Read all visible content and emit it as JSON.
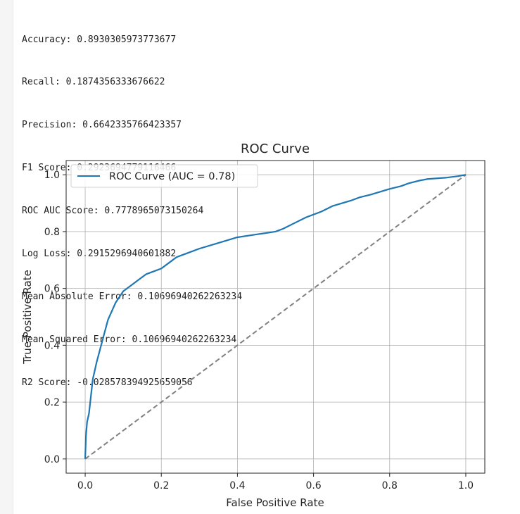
{
  "metrics": [
    "Accuracy: 0.8930305973773677",
    "Recall: 0.1874356333676622",
    "Precision: 0.6642335766423357",
    "F1 Score: 0.2923694779116466",
    "ROC AUC Score: 0.7778965073150264",
    "Log Loss: 0.2915296940601882",
    "Mean Absolute Error: 0.10696940262263234",
    "Mean Squared Error: 0.10696940262263234",
    "R2 Score: -0.028578394925659056"
  ],
  "chart_data": {
    "type": "line",
    "title": "ROC Curve",
    "xlabel": "False Positive Rate",
    "ylabel": "True Positive Rate",
    "xlim": [
      -0.05,
      1.05
    ],
    "ylim": [
      -0.05,
      1.05
    ],
    "xticks": [
      "0.0",
      "0.2",
      "0.4",
      "0.6",
      "0.8",
      "1.0"
    ],
    "yticks": [
      "0.0",
      "0.2",
      "0.4",
      "0.6",
      "0.8",
      "1.0"
    ],
    "grid": true,
    "legend_position": "top-left",
    "series": [
      {
        "name": "ROC Curve (AUC = 0.78)",
        "color": "#1f77b4",
        "style": "solid",
        "x": [
          0.0,
          0.002,
          0.005,
          0.01,
          0.015,
          0.02,
          0.03,
          0.04,
          0.05,
          0.06,
          0.07,
          0.08,
          0.09,
          0.1,
          0.11,
          0.12,
          0.14,
          0.16,
          0.17,
          0.18,
          0.2,
          0.22,
          0.24,
          0.26,
          0.28,
          0.3,
          0.35,
          0.4,
          0.45,
          0.5,
          0.52,
          0.55,
          0.58,
          0.6,
          0.62,
          0.65,
          0.7,
          0.72,
          0.75,
          0.8,
          0.83,
          0.85,
          0.88,
          0.9,
          0.95,
          0.98,
          1.0
        ],
        "y": [
          0.0,
          0.08,
          0.13,
          0.16,
          0.22,
          0.28,
          0.34,
          0.39,
          0.44,
          0.49,
          0.52,
          0.55,
          0.57,
          0.59,
          0.6,
          0.61,
          0.63,
          0.65,
          0.655,
          0.66,
          0.67,
          0.69,
          0.71,
          0.72,
          0.73,
          0.74,
          0.76,
          0.78,
          0.79,
          0.8,
          0.81,
          0.83,
          0.85,
          0.86,
          0.87,
          0.89,
          0.91,
          0.92,
          0.93,
          0.95,
          0.96,
          0.97,
          0.98,
          0.985,
          0.99,
          0.995,
          1.0
        ]
      },
      {
        "color": "#808080",
        "style": "dashed",
        "x": [
          0,
          1
        ],
        "y": [
          0,
          1
        ]
      }
    ]
  }
}
